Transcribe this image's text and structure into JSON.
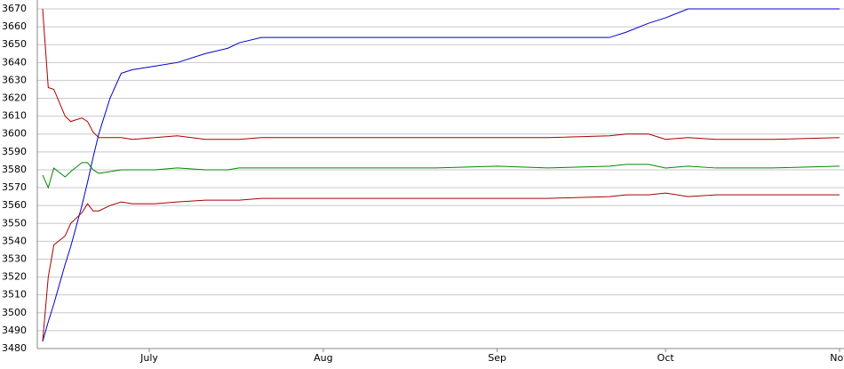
{
  "chart_data": {
    "type": "line",
    "x": [
      0,
      1,
      2,
      4,
      5,
      7,
      8,
      9,
      10,
      12,
      14,
      16,
      20,
      24,
      29,
      33,
      35,
      39,
      50,
      60,
      70,
      81,
      90,
      101,
      104,
      108,
      111,
      115,
      120,
      130,
      142
    ],
    "series": [
      {
        "color": "#0000cc",
        "values": [
          3484,
          3495,
          3505,
          3527,
          3537,
          3560,
          3573,
          3587,
          3600,
          3620,
          3634,
          3636,
          3638,
          3640,
          3645,
          3648,
          3651,
          3654,
          3654,
          3654,
          3654,
          3654,
          3654,
          3654,
          3657,
          3662,
          3665,
          3670,
          3670,
          3670,
          3670
        ]
      },
      {
        "color": "#aa0000",
        "values": [
          3670,
          3626,
          3625,
          3610,
          3607,
          3609,
          3607,
          3601,
          3598,
          3598,
          3598,
          3597,
          3598,
          3599,
          3597,
          3597,
          3597,
          3598,
          3598,
          3598,
          3598,
          3598,
          3598,
          3599,
          3600,
          3600,
          3597,
          3598,
          3597,
          3597,
          3598
        ]
      },
      {
        "color": "#008800",
        "values": [
          3577,
          3570,
          3581,
          3576,
          3579,
          3584,
          3584,
          3580,
          3578,
          3579,
          3580,
          3580,
          3580,
          3581,
          3580,
          3580,
          3581,
          3581,
          3581,
          3581,
          3581,
          3582,
          3581,
          3582,
          3583,
          3583,
          3581,
          3582,
          3581,
          3581,
          3582
        ]
      },
      {
        "color": "#aa0000",
        "values": [
          3484,
          3520,
          3538,
          3543,
          3550,
          3556,
          3561,
          3557,
          3557,
          3560,
          3562,
          3561,
          3561,
          3562,
          3563,
          3563,
          3563,
          3564,
          3564,
          3564,
          3564,
          3564,
          3564,
          3565,
          3566,
          3566,
          3567,
          3565,
          3566,
          3566,
          3566
        ]
      }
    ],
    "xlim": [
      0,
      142
    ],
    "xticks": [
      {
        "value": 19,
        "label": "July"
      },
      {
        "value": 50,
        "label": "Aug"
      },
      {
        "value": 81,
        "label": "Sep"
      },
      {
        "value": 111,
        "label": "Oct"
      },
      {
        "value": 142,
        "label": "Nov"
      }
    ],
    "ylim": [
      3480,
      3670
    ],
    "yticks": [
      3480,
      3490,
      3500,
      3510,
      3520,
      3530,
      3540,
      3550,
      3560,
      3570,
      3580,
      3590,
      3600,
      3610,
      3620,
      3630,
      3640,
      3650,
      3660,
      3670
    ],
    "grid": true
  }
}
